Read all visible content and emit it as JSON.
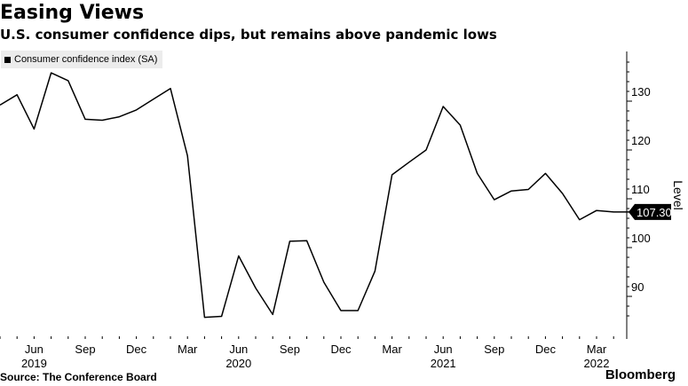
{
  "header": {
    "title": "Easing Views",
    "subtitle": "U.S. consumer confidence dips, but remains above pandemic lows"
  },
  "legend": {
    "label": "Consumer confidence index (SA)"
  },
  "footer": {
    "source": "Source: The Conference Board",
    "brand": "Bloomberg"
  },
  "chart_data": {
    "type": "line",
    "title": "Easing Views",
    "subtitle": "U.S. consumer confidence dips, but remains above pandemic lows",
    "ylabel": "Level",
    "ylim": [
      84,
      140
    ],
    "yticks": [
      90,
      100,
      110,
      120,
      130
    ],
    "grid": false,
    "legend_position": "top-left",
    "xticks": [
      {
        "label": "Jun",
        "year": "2019",
        "index": 2
      },
      {
        "label": "Sep",
        "year": "",
        "index": 5
      },
      {
        "label": "Dec",
        "year": "",
        "index": 8
      },
      {
        "label": "Mar",
        "year": "",
        "index": 11
      },
      {
        "label": "Jun",
        "year": "2020",
        "index": 14
      },
      {
        "label": "Sep",
        "year": "",
        "index": 17
      },
      {
        "label": "Dec",
        "year": "",
        "index": 20
      },
      {
        "label": "Mar",
        "year": "",
        "index": 23
      },
      {
        "label": "Jun",
        "year": "2021",
        "index": 26
      },
      {
        "label": "Sep",
        "year": "",
        "index": 29
      },
      {
        "label": "Dec",
        "year": "",
        "index": 32
      },
      {
        "label": "Mar",
        "year": "2022",
        "index": 35
      }
    ],
    "last_value_label": "107.30",
    "series": [
      {
        "name": "Consumer confidence index (SA)",
        "color": "#000000",
        "x": [
          "2019-04",
          "2019-05",
          "2019-06",
          "2019-07",
          "2019-08",
          "2019-09",
          "2019-10",
          "2019-11",
          "2019-12",
          "2020-01",
          "2020-02",
          "2020-03",
          "2020-04",
          "2020-05",
          "2020-06",
          "2020-07",
          "2020-08",
          "2020-09",
          "2020-10",
          "2020-11",
          "2020-12",
          "2021-01",
          "2021-02",
          "2021-03",
          "2021-04",
          "2021-05",
          "2021-06",
          "2021-07",
          "2021-08",
          "2021-09",
          "2021-10",
          "2021-11",
          "2021-12",
          "2022-01",
          "2022-02",
          "2022-03",
          "2022-04",
          "2022-05"
        ],
        "values": [
          129.2,
          131.3,
          124.3,
          135.8,
          134.2,
          126.3,
          126.1,
          126.8,
          128.2,
          130.4,
          132.6,
          118.8,
          85.7,
          85.9,
          98.3,
          91.7,
          86.3,
          101.3,
          101.4,
          92.9,
          87.1,
          87.1,
          95.2,
          114.9,
          117.5,
          120.0,
          128.9,
          125.1,
          115.2,
          109.8,
          111.6,
          111.9,
          115.2,
          111.1,
          105.7,
          107.6,
          107.3,
          107.3
        ]
      }
    ]
  }
}
